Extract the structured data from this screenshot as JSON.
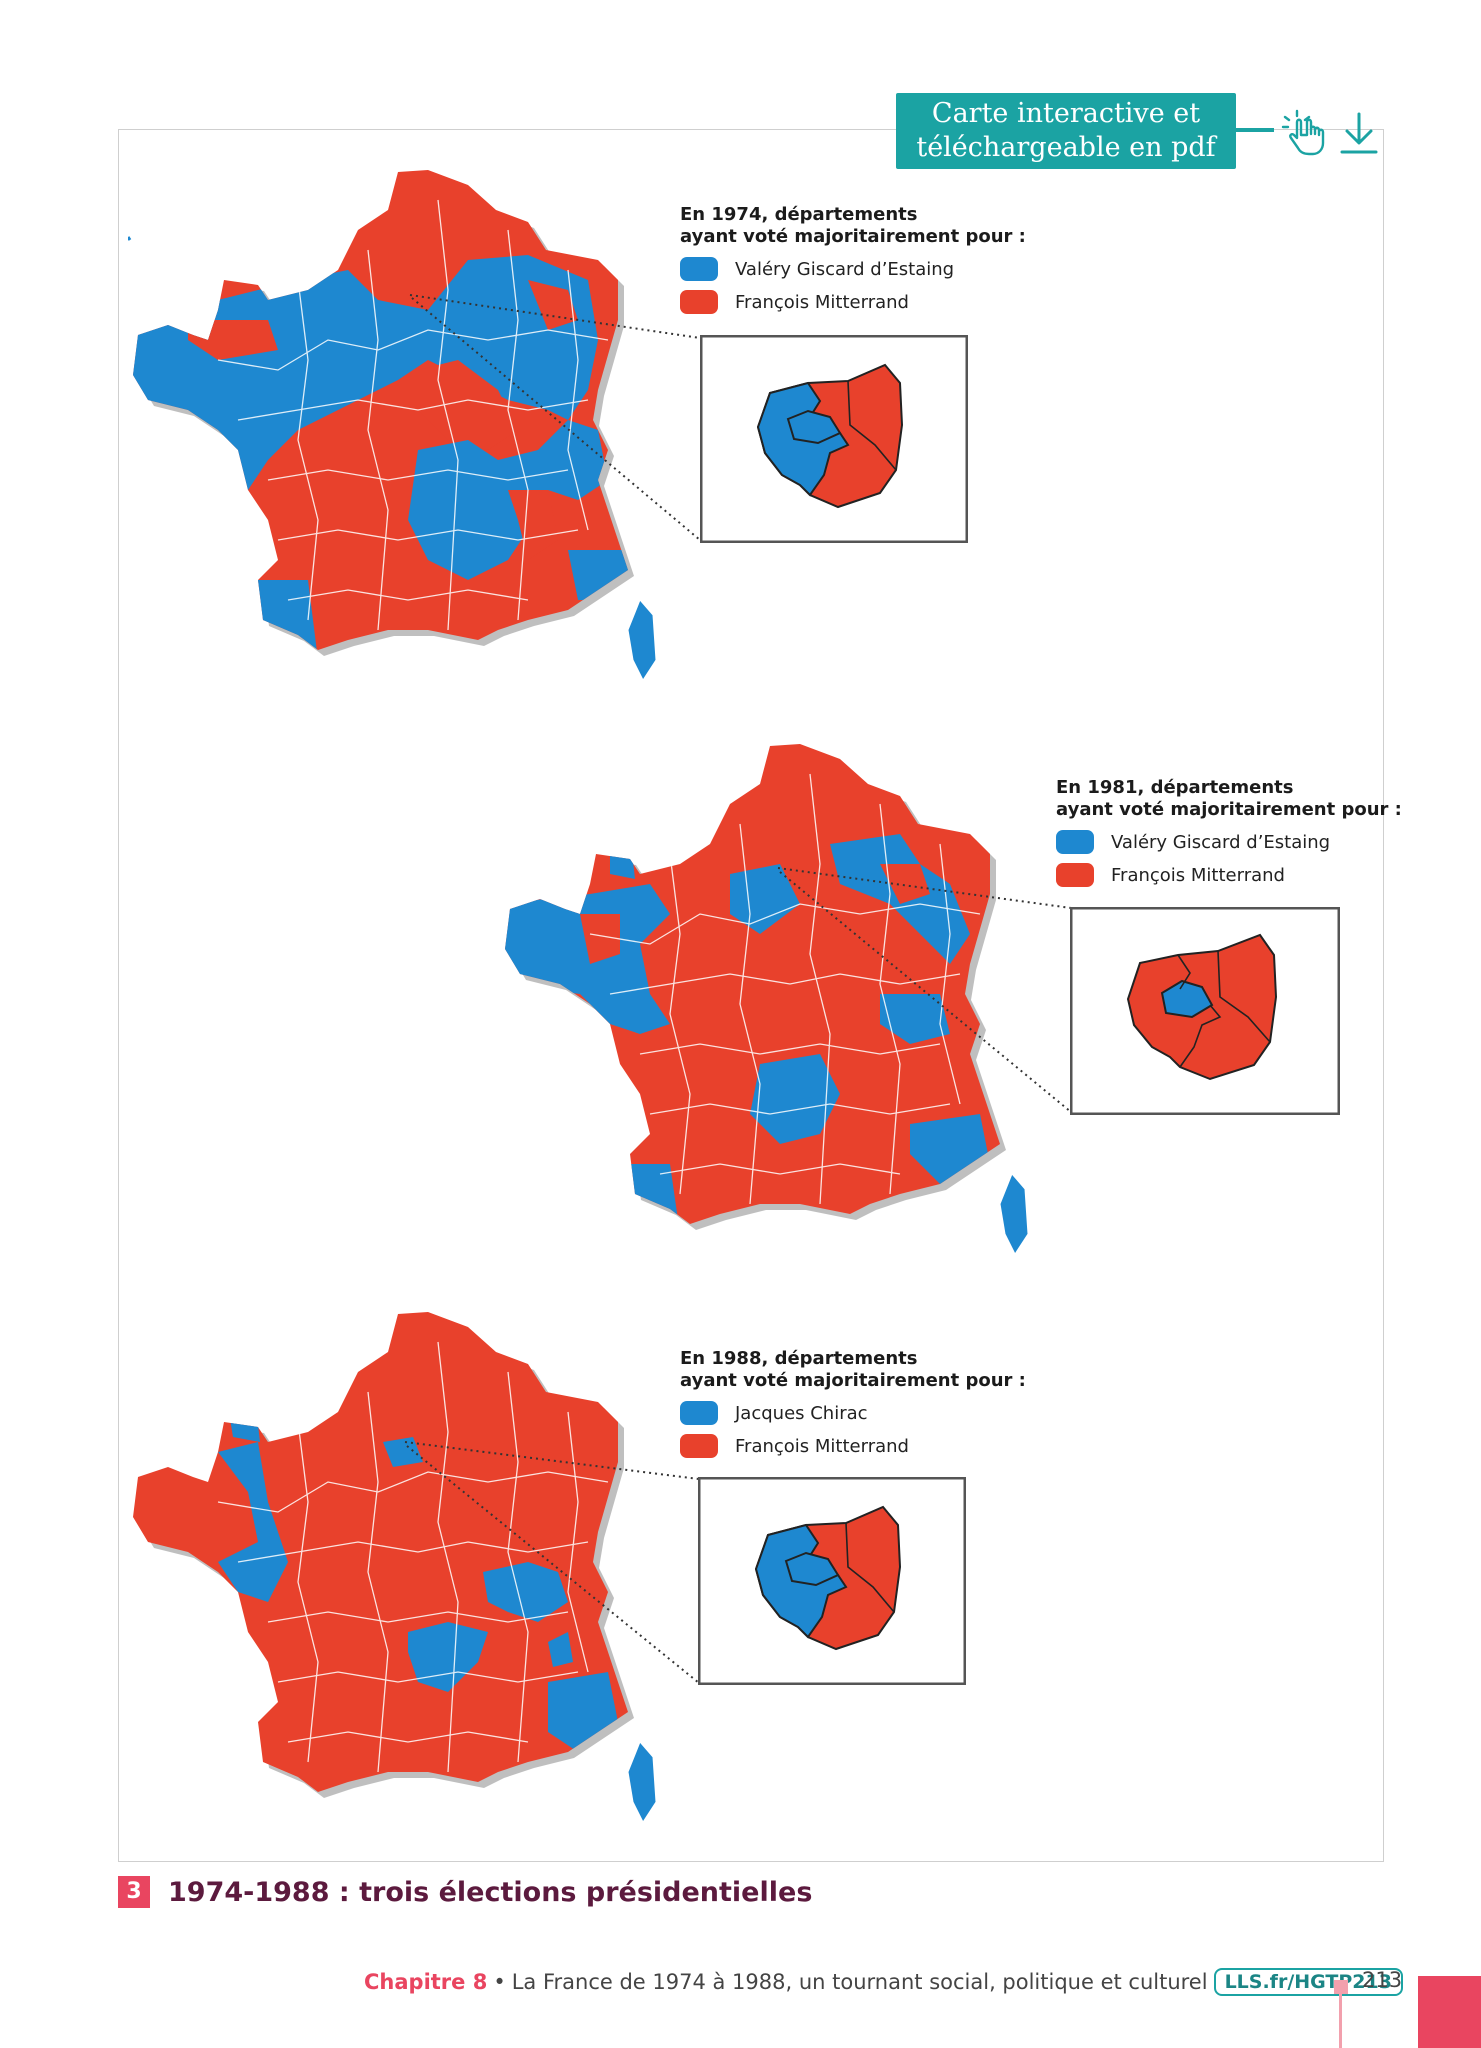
{
  "banner": {
    "line1": "Carte interactive et",
    "line2": "téléchargeable en pdf"
  },
  "icons": {
    "interactive": "hand-pointer-icon",
    "download": "download-icon"
  },
  "colors": {
    "blue": "#1e88d0",
    "red": "#e8412c",
    "teal": "#1ba3a3",
    "accent": "#e94560",
    "title": "#5c1a3e"
  },
  "maps": [
    {
      "title_line1": "En 1974, départements",
      "title_line2": "ayant voté majoritairement pour :",
      "right_candidate": "Valéry Giscard d’Estaing",
      "left_candidate": "François Mitterrand"
    },
    {
      "title_line1": "En 1981, départements",
      "title_line2": "ayant voté majoritairement pour :",
      "right_candidate": "Valéry Giscard d’Estaing",
      "left_candidate": "François Mitterrand"
    },
    {
      "title_line1": "En 1988, départements",
      "title_line2": "ayant voté majoritairement pour :",
      "right_candidate": "Jacques Chirac",
      "left_candidate": "François Mitterrand"
    }
  ],
  "caption": {
    "number": "3",
    "title": "1974-1988 : trois élections présidentielles"
  },
  "footer": {
    "chapter": "Chapitre 8",
    "separator": "•",
    "text": "La France de 1974 à 1988, un tournant social, politique et culturel",
    "link": "LLS.fr/HGTP213",
    "page": "213"
  }
}
